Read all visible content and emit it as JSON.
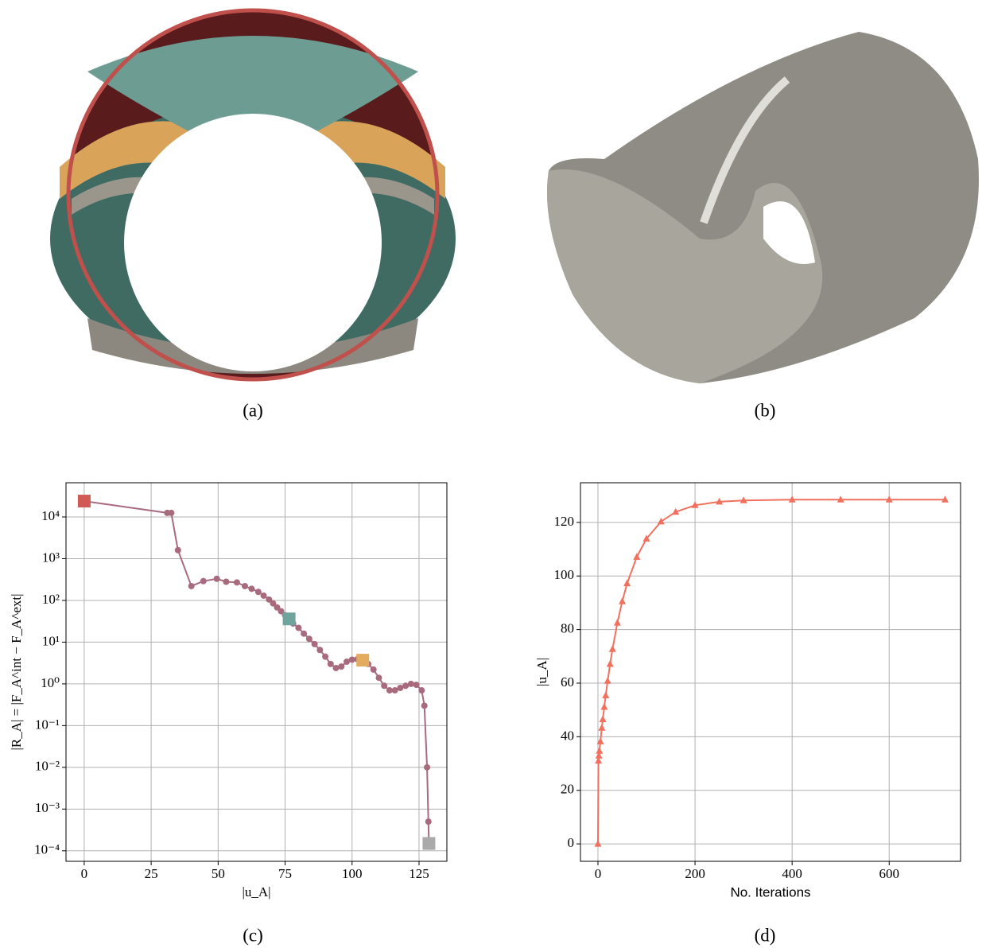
{
  "panels": {
    "a": {
      "caption": "(a)"
    },
    "b": {
      "caption": "(b)"
    },
    "c": {
      "caption": "(c)"
    },
    "d": {
      "caption": "(d)"
    }
  },
  "chart_data": [
    {
      "type": "line",
      "log_y": true,
      "grid": true,
      "marker": "circle",
      "xlabel": "|u_A|",
      "ylabel": "|R_A| = |F_A^int − F_A^ext|",
      "xlim": [
        -6.8,
        135.4
      ],
      "xticks": [
        0,
        25,
        50,
        75,
        100,
        125
      ],
      "ylim": [
        5.6e-05,
        66000
      ],
      "yticks": [
        {
          "value": 0.0001,
          "label": "10⁻⁴"
        },
        {
          "value": 0.001,
          "label": "10⁻³"
        },
        {
          "value": 0.01,
          "label": "10⁻²"
        },
        {
          "value": 0.1,
          "label": "10⁻¹"
        },
        {
          "value": 1,
          "label": "10⁰"
        },
        {
          "value": 10,
          "label": "10¹"
        },
        {
          "value": 100,
          "label": "10²"
        },
        {
          "value": 1000,
          "label": "10³"
        },
        {
          "value": 10000,
          "label": "10⁴"
        }
      ],
      "x": [
        0,
        31,
        32.5,
        35,
        40,
        44.5,
        49.5,
        53,
        57,
        60,
        62.5,
        65,
        67,
        69,
        70.5,
        72,
        73.5,
        75,
        76.5,
        78,
        80,
        82,
        84,
        86,
        88,
        90,
        92,
        94,
        96,
        98,
        100,
        102,
        104,
        106,
        108,
        110,
        112,
        114,
        116,
        118,
        120,
        122,
        124,
        126,
        127,
        128,
        128.5,
        128.7
      ],
      "series": [
        {
          "color": "#a86b7e",
          "values": [
            24000,
            12500,
            12500,
            1600,
            220,
            290,
            330,
            280,
            270,
            220,
            190,
            160,
            130,
            105,
            85,
            68,
            55,
            44,
            36,
            28,
            22,
            16,
            12,
            9,
            6.5,
            4.5,
            3,
            2.4,
            2.6,
            3.4,
            3.8,
            3.9,
            3.7,
            3,
            2.2,
            1.4,
            0.9,
            0.7,
            0.7,
            0.8,
            0.9,
            1.0,
            0.95,
            0.7,
            0.3,
            0.01,
            0.0005,
            0.00015
          ]
        }
      ],
      "highlights": {
        "x": [
          0,
          76.5,
          104,
          128.7
        ],
        "values": [
          24000,
          36,
          3.7,
          0.00015
        ],
        "colors": [
          "#d05a55",
          "#6fa39c",
          "#e3ab5e",
          "#aaaaaa"
        ]
      }
    },
    {
      "type": "line",
      "log_y": false,
      "grid": true,
      "marker": "triangle",
      "xlabel": "No. Iterations",
      "ylabel": "|u_A|",
      "xlim": [
        -36,
        747
      ],
      "xticks": [
        0,
        200,
        400,
        600
      ],
      "ylim": [
        -6.5,
        134.8
      ],
      "yticks": [
        0,
        20,
        40,
        60,
        80,
        100,
        120
      ],
      "x": [
        0,
        1,
        2,
        3,
        5,
        8,
        10,
        13,
        16,
        20,
        25,
        30,
        40,
        50,
        60,
        80,
        100,
        130,
        160,
        200,
        250,
        300,
        400,
        500,
        600,
        715
      ],
      "series": [
        {
          "color": "#f2705e",
          "values": [
            0,
            31,
            32.9,
            34.7,
            38.2,
            43.3,
            46.5,
            51.1,
            55.4,
            60.8,
            67.1,
            72.7,
            82.5,
            90.5,
            97.2,
            107.1,
            113.9,
            120.3,
            123.9,
            126.4,
            127.7,
            128.2,
            128.5,
            128.5,
            128.5,
            128.5
          ]
        }
      ]
    }
  ]
}
